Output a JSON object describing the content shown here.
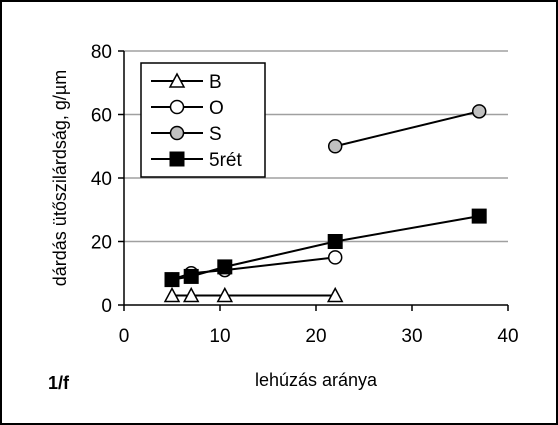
{
  "figure_label": "1/f",
  "chart_data": {
    "type": "line",
    "xlabel": "lehúzás aránya",
    "ylabel": "dárdás ütőszilárdság, g/µm",
    "xlim": [
      0,
      40
    ],
    "ylim": [
      0,
      80
    ],
    "x_ticks": [
      0,
      10,
      20,
      30,
      40
    ],
    "y_ticks": [
      0,
      20,
      40,
      60,
      80
    ],
    "grid": "horizontal",
    "legend_position": "top-left",
    "series": [
      {
        "name": "B",
        "marker": "triangle-open",
        "color": "#000000",
        "x": [
          5,
          7,
          10.5,
          22
        ],
        "y": [
          3,
          3,
          3,
          3
        ]
      },
      {
        "name": "O",
        "marker": "circle-open",
        "color": "#000000",
        "x": [
          5,
          7,
          10.5,
          22
        ],
        "y": [
          8,
          10,
          11,
          15
        ]
      },
      {
        "name": "S",
        "marker": "circle-gray",
        "color": "#c0c0c0",
        "x": [
          22,
          37
        ],
        "y": [
          50,
          61
        ]
      },
      {
        "name": "5rét",
        "marker": "square-filled",
        "color": "#000000",
        "x": [
          5,
          7,
          10.5,
          22,
          37
        ],
        "y": [
          8,
          9,
          12,
          20,
          28
        ]
      }
    ]
  }
}
